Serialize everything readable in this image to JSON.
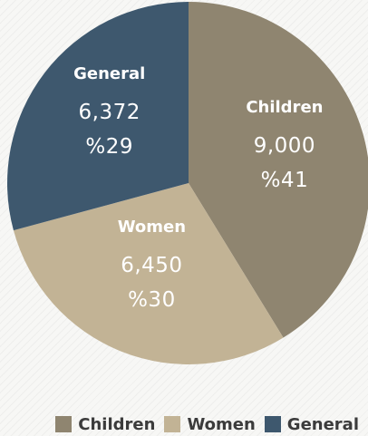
{
  "chart_data": {
    "type": "pie",
    "title": "",
    "slices": [
      {
        "name": "Children",
        "value": 9000,
        "value_label": "9,000",
        "percent_label": "%41",
        "color": "#8f8570"
      },
      {
        "name": "Women",
        "value": 6450,
        "value_label": "6,450",
        "percent_label": "%30",
        "color": "#c2b395"
      },
      {
        "name": "General",
        "value": 6372,
        "value_label": "6,372",
        "percent_label": "%29",
        "color": "#3e586e"
      }
    ],
    "legend": {
      "position": "bottom-right",
      "items": [
        "Children",
        "Women",
        "General"
      ]
    }
  }
}
